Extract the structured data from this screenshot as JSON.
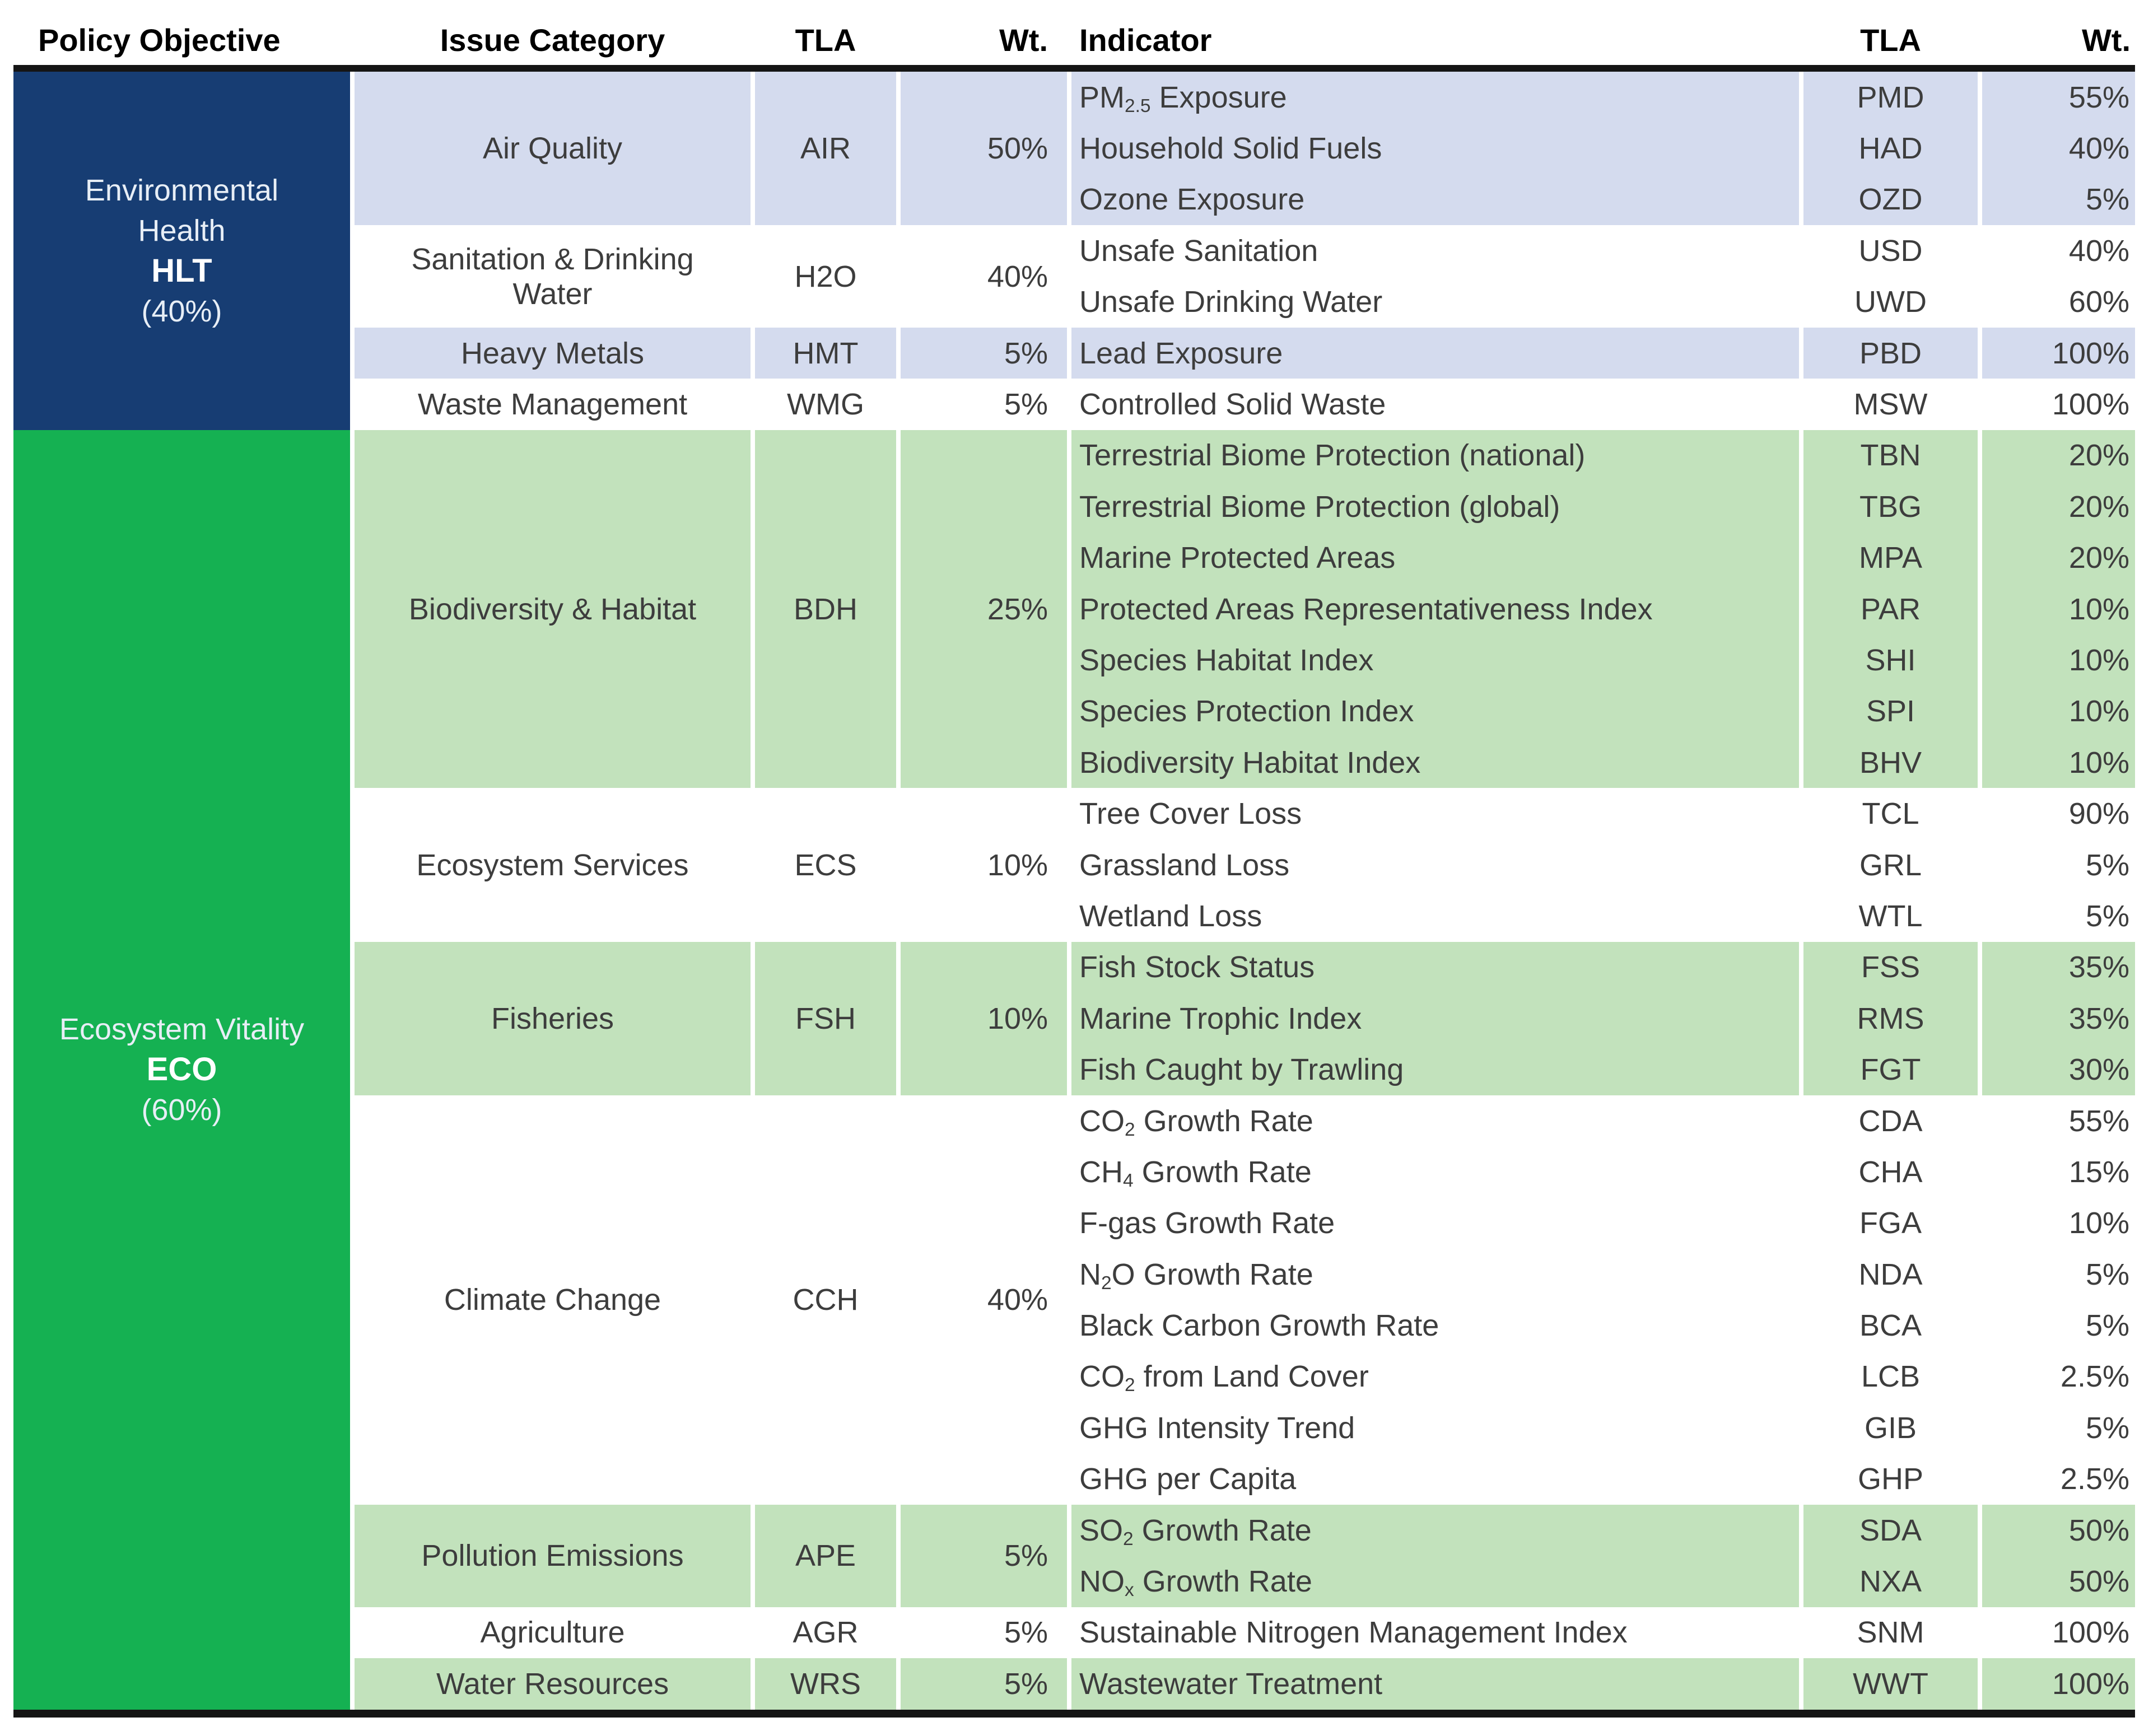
{
  "header": {
    "policy_objective": "Policy Objective",
    "issue_category": "Issue Category",
    "tla_left": "TLA",
    "wt_left": "Wt.",
    "indicator": "Indicator",
    "tla_right": "TLA",
    "wt_right": "Wt."
  },
  "colors": {
    "navy": "#173d73",
    "green": "#15b152",
    "light_blue": "#d4dbee",
    "light_green": "#c2e2bc",
    "white": "#ffffff",
    "rule_black": "#151515",
    "body_text": "#3d3d3d",
    "sidebar_text": "#e7eef6",
    "sidebar_text_bold": "#ffffff"
  },
  "objectives": [
    {
      "name_lines": [
        "Environmental",
        "Health"
      ],
      "tla": "HLT",
      "weight": "(40%)",
      "color_key": "navy",
      "band_key": "light_blue",
      "categories": [
        {
          "name": "Air Quality",
          "tla": "AIR",
          "wt": "50%",
          "banded": true,
          "indicators": [
            {
              "label": [
                {
                  "t": "PM"
                },
                {
                  "t": "2.5",
                  "sub": true
                },
                {
                  "t": " Exposure"
                }
              ],
              "tla": "PMD",
              "wt": "55%"
            },
            {
              "label": [
                {
                  "t": "Household Solid Fuels"
                }
              ],
              "tla": "HAD",
              "wt": "40%"
            },
            {
              "label": [
                {
                  "t": "Ozone Exposure"
                }
              ],
              "tla": "OZD",
              "wt": "5%"
            }
          ]
        },
        {
          "name": "Sanitation & Drinking Water",
          "tla": "H2O",
          "wt": "40%",
          "banded": false,
          "indicators": [
            {
              "label": [
                {
                  "t": "Unsafe Sanitation"
                }
              ],
              "tla": "USD",
              "wt": "40%"
            },
            {
              "label": [
                {
                  "t": "Unsafe Drinking Water"
                }
              ],
              "tla": "UWD",
              "wt": "60%"
            }
          ]
        },
        {
          "name": "Heavy Metals",
          "tla": "HMT",
          "wt": "5%",
          "banded": true,
          "indicators": [
            {
              "label": [
                {
                  "t": "Lead Exposure"
                }
              ],
              "tla": "PBD",
              "wt": "100%"
            }
          ]
        },
        {
          "name": "Waste Management",
          "tla": "WMG",
          "wt": "5%",
          "banded": false,
          "indicators": [
            {
              "label": [
                {
                  "t": "Controlled Solid Waste"
                }
              ],
              "tla": "MSW",
              "wt": "100%"
            }
          ]
        }
      ]
    },
    {
      "name_lines": [
        "Ecosystem Vitality"
      ],
      "tla": "ECO",
      "weight": "(60%)",
      "color_key": "green",
      "band_key": "light_green",
      "categories": [
        {
          "name": "Biodiversity & Habitat",
          "tla": "BDH",
          "wt": "25%",
          "banded": true,
          "indicators": [
            {
              "label": [
                {
                  "t": "Terrestrial Biome Protection (national)"
                }
              ],
              "tla": "TBN",
              "wt": "20%"
            },
            {
              "label": [
                {
                  "t": "Terrestrial Biome Protection (global)"
                }
              ],
              "tla": "TBG",
              "wt": "20%"
            },
            {
              "label": [
                {
                  "t": "Marine Protected Areas"
                }
              ],
              "tla": "MPA",
              "wt": "20%"
            },
            {
              "label": [
                {
                  "t": "Protected Areas Representativeness Index"
                }
              ],
              "tla": "PAR",
              "wt": "10%"
            },
            {
              "label": [
                {
                  "t": "Species Habitat Index"
                }
              ],
              "tla": "SHI",
              "wt": "10%"
            },
            {
              "label": [
                {
                  "t": "Species Protection Index"
                }
              ],
              "tla": "SPI",
              "wt": "10%"
            },
            {
              "label": [
                {
                  "t": "Biodiversity Habitat Index"
                }
              ],
              "tla": "BHV",
              "wt": "10%"
            }
          ]
        },
        {
          "name": "Ecosystem Services",
          "tla": "ECS",
          "wt": "10%",
          "banded": false,
          "indicators": [
            {
              "label": [
                {
                  "t": "Tree Cover Loss"
                }
              ],
              "tla": "TCL",
              "wt": "90%"
            },
            {
              "label": [
                {
                  "t": "Grassland Loss"
                }
              ],
              "tla": "GRL",
              "wt": "5%"
            },
            {
              "label": [
                {
                  "t": "Wetland Loss"
                }
              ],
              "tla": "WTL",
              "wt": "5%"
            }
          ]
        },
        {
          "name": "Fisheries",
          "tla": "FSH",
          "wt": "10%",
          "banded": true,
          "indicators": [
            {
              "label": [
                {
                  "t": "Fish Stock Status"
                }
              ],
              "tla": "FSS",
              "wt": "35%"
            },
            {
              "label": [
                {
                  "t": "Marine Trophic Index"
                }
              ],
              "tla": "RMS",
              "wt": "35%"
            },
            {
              "label": [
                {
                  "t": "Fish Caught by Trawling"
                }
              ],
              "tla": "FGT",
              "wt": "30%"
            }
          ]
        },
        {
          "name": "Climate Change",
          "tla": "CCH",
          "wt": "40%",
          "banded": false,
          "indicators": [
            {
              "label": [
                {
                  "t": "CO"
                },
                {
                  "t": "2",
                  "sub": true
                },
                {
                  "t": " Growth Rate"
                }
              ],
              "tla": "CDA",
              "wt": "55%"
            },
            {
              "label": [
                {
                  "t": "CH"
                },
                {
                  "t": "4",
                  "sub": true
                },
                {
                  "t": " Growth Rate"
                }
              ],
              "tla": "CHA",
              "wt": "15%"
            },
            {
              "label": [
                {
                  "t": "F-gas Growth Rate"
                }
              ],
              "tla": "FGA",
              "wt": "10%"
            },
            {
              "label": [
                {
                  "t": "N"
                },
                {
                  "t": "2",
                  "sub": true
                },
                {
                  "t": "O Growth Rate"
                }
              ],
              "tla": "NDA",
              "wt": "5%"
            },
            {
              "label": [
                {
                  "t": "Black Carbon Growth Rate"
                }
              ],
              "tla": "BCA",
              "wt": "5%"
            },
            {
              "label": [
                {
                  "t": "CO"
                },
                {
                  "t": "2",
                  "sub": true
                },
                {
                  "t": " from Land Cover"
                }
              ],
              "tla": "LCB",
              "wt": "2.5%"
            },
            {
              "label": [
                {
                  "t": "GHG Intensity Trend"
                }
              ],
              "tla": "GIB",
              "wt": "5%"
            },
            {
              "label": [
                {
                  "t": "GHG per Capita"
                }
              ],
              "tla": "GHP",
              "wt": "2.5%"
            }
          ]
        },
        {
          "name": "Pollution Emissions",
          "tla": "APE",
          "wt": "5%",
          "banded": true,
          "indicators": [
            {
              "label": [
                {
                  "t": "SO"
                },
                {
                  "t": "2",
                  "sub": true
                },
                {
                  "t": " Growth Rate"
                }
              ],
              "tla": "SDA",
              "wt": "50%"
            },
            {
              "label": [
                {
                  "t": "NO"
                },
                {
                  "t": "x",
                  "sub": true
                },
                {
                  "t": " Growth Rate"
                }
              ],
              "tla": "NXA",
              "wt": "50%"
            }
          ]
        },
        {
          "name": "Agriculture",
          "tla": "AGR",
          "wt": "5%",
          "banded": false,
          "indicators": [
            {
              "label": [
                {
                  "t": "Sustainable Nitrogen Management Index"
                }
              ],
              "tla": "SNM",
              "wt": "100%"
            }
          ]
        },
        {
          "name": "Water Resources",
          "tla": "WRS",
          "wt": "5%",
          "banded": true,
          "indicators": [
            {
              "label": [
                {
                  "t": "Wastewater Treatment"
                }
              ],
              "tla": "WWT",
              "wt": "100%"
            }
          ]
        }
      ]
    }
  ]
}
